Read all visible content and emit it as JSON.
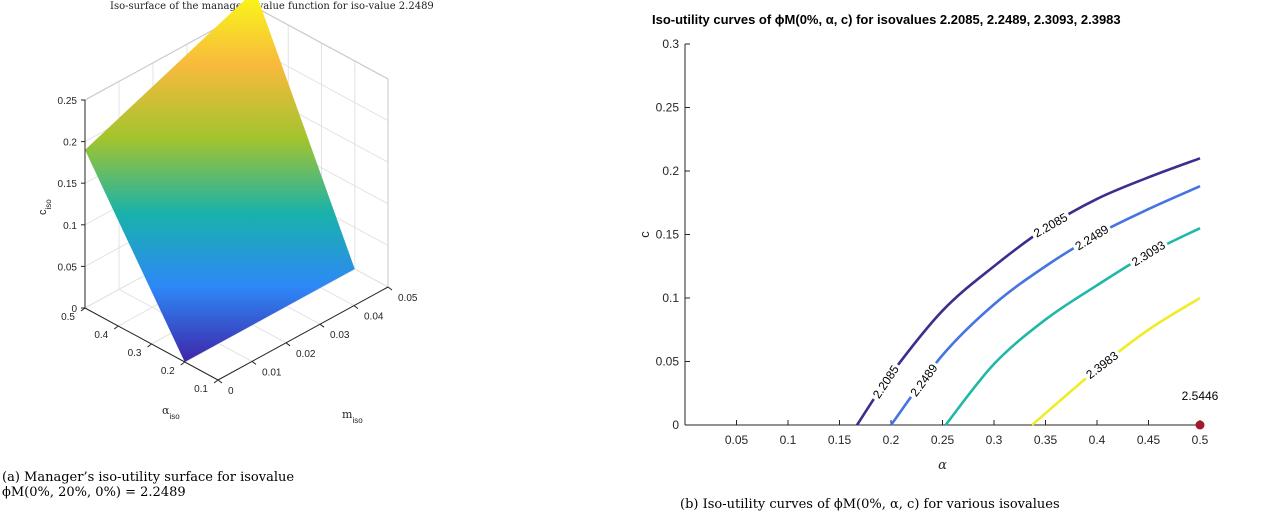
{
  "panel_a": {
    "title": "Iso-surface of the manager's value function for iso-value 2.2489",
    "caption_line1": "(a) Manager’s iso-utility surface for isovalue",
    "caption_line2": "ϕM(0%, 20%, 0%) = 2.2489"
  },
  "panel_b": {
    "title": "Iso-utility curves of ϕM(0%, α, c) for isovalues 2.2085, 2.2489, 2.3093, 2.3983",
    "caption": "(b) Iso-utility curves of ϕM(0%, α, c) for various isovalues"
  },
  "chart_data": [
    {
      "type": "surface",
      "title": "Iso-surface of the manager's value function for iso-value 2.2489",
      "x_axis": {
        "label": "m",
        "label_sub": "iso",
        "ticks": [
          "0",
          "0.01",
          "0.02",
          "0.03",
          "0.04",
          "0.05"
        ],
        "range": [
          0,
          0.05
        ]
      },
      "y_axis": {
        "label": "α",
        "label_sub": "iso",
        "ticks": [
          "0.1",
          "0.2",
          "0.3",
          "0.4",
          "0.5"
        ],
        "range": [
          0.1,
          0.5
        ]
      },
      "z_axis": {
        "label": "c",
        "label_sub": "iso",
        "ticks": [
          "0",
          "0.05",
          "0.1",
          "0.15",
          "0.2",
          "0.25"
        ],
        "range": [
          0,
          0.25
        ]
      },
      "surface_corners": [
        {
          "m": 0,
          "alpha": 0.2,
          "c": 0
        },
        {
          "m": 0,
          "alpha": 0.5,
          "c": 0.19
        },
        {
          "m": 0.05,
          "alpha": 0.5,
          "c": 0.27
        },
        {
          "m": 0.05,
          "alpha": 0.2,
          "c": 0
        }
      ],
      "colormap": [
        "#3e26a8",
        "#2e87f7",
        "#19b2ab",
        "#a2c42e",
        "#f8ba3d",
        "#f9fb15"
      ],
      "grid": true
    },
    {
      "type": "line",
      "title": "Iso-utility curves of ϕM(0%, α, c) for isovalues 2.2085, 2.2489, 2.3093, 2.3983",
      "xlabel": "α",
      "ylabel": "c",
      "xlim": [
        0,
        0.5
      ],
      "ylim": [
        0,
        0.3
      ],
      "xticks": [
        "0.05",
        "0.1",
        "0.15",
        "0.2",
        "0.25",
        "0.3",
        "0.35",
        "0.4",
        "0.45",
        "0.5"
      ],
      "yticks": [
        "0",
        "0.05",
        "0.1",
        "0.15",
        "0.2",
        "0.25",
        "0.3"
      ],
      "series": [
        {
          "name": "2.2085",
          "color": "#3b2e8f",
          "points": [
            [
              0.167,
              0
            ],
            [
              0.2,
              0.04
            ],
            [
              0.25,
              0.09
            ],
            [
              0.3,
              0.125
            ],
            [
              0.35,
              0.155
            ],
            [
              0.4,
              0.178
            ],
            [
              0.45,
              0.195
            ],
            [
              0.5,
              0.21
            ]
          ]
        },
        {
          "name": "2.2489",
          "color": "#4674e0",
          "points": [
            [
              0.2,
              0
            ],
            [
              0.25,
              0.055
            ],
            [
              0.3,
              0.095
            ],
            [
              0.35,
              0.125
            ],
            [
              0.4,
              0.15
            ],
            [
              0.45,
              0.17
            ],
            [
              0.5,
              0.188
            ]
          ]
        },
        {
          "name": "2.3093",
          "color": "#1fb8a6",
          "points": [
            [
              0.253,
              0
            ],
            [
              0.3,
              0.048
            ],
            [
              0.35,
              0.083
            ],
            [
              0.4,
              0.11
            ],
            [
              0.45,
              0.135
            ],
            [
              0.5,
              0.155
            ]
          ]
        },
        {
          "name": "2.3983",
          "color": "#f0ec28",
          "points": [
            [
              0.337,
              0
            ],
            [
              0.4,
              0.044
            ],
            [
              0.45,
              0.075
            ],
            [
              0.5,
              0.1
            ]
          ]
        }
      ],
      "marker": {
        "x": 0.5,
        "y": 0,
        "label": "2.5446",
        "color": "#a01c2c"
      },
      "grid": false
    }
  ]
}
